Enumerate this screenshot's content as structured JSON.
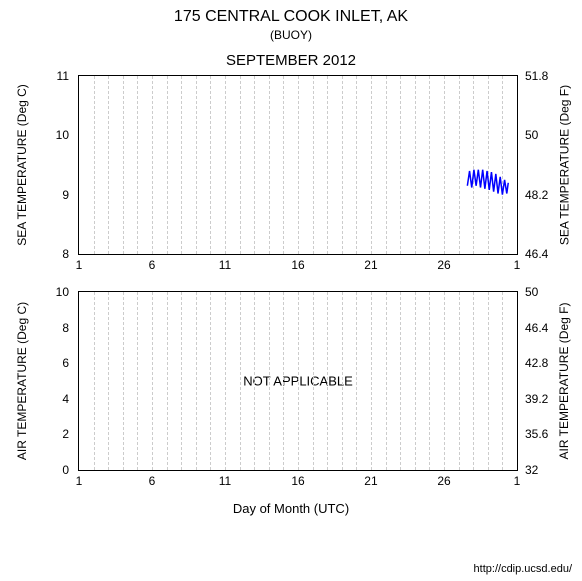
{
  "header": {
    "title": "175 CENTRAL COOK INLET, AK",
    "subtitle": "(BUOY)",
    "month": "SEPTEMBER 2012"
  },
  "xlabel": "Day of Month (UTC)",
  "credit": "http://cdip.ucsd.edu/",
  "x_axis": {
    "min": 1,
    "max": 31,
    "ticks": [
      1,
      6,
      11,
      16,
      21,
      26,
      31
    ],
    "tick_labels": [
      "1",
      "6",
      "11",
      "16",
      "21",
      "26",
      "1"
    ],
    "grid_positions": [
      2,
      3,
      4,
      5,
      6,
      7,
      8,
      9,
      10,
      11,
      12,
      13,
      14,
      15,
      16,
      17,
      18,
      19,
      20,
      21,
      22,
      23,
      24,
      25,
      26,
      27,
      28,
      29,
      30
    ]
  },
  "top_chart": {
    "ylabel_left": "SEA TEMPERATURE (Deg C)",
    "ylabel_right": "SEA TEMPERATURE (Deg F)",
    "yl_min": 8,
    "yl_max": 11,
    "yl_ticks": [
      8,
      9,
      10,
      11
    ],
    "yr_ticks": [
      {
        "label": "46.4",
        "c": 8
      },
      {
        "label": "48.2",
        "c": 9
      },
      {
        "label": "50",
        "c": 10
      },
      {
        "label": "51.8",
        "c": 11
      }
    ],
    "series": {
      "color": "#0000ff",
      "width": 1.5,
      "points": [
        {
          "x": 27.6,
          "y": 9.15
        },
        {
          "x": 27.75,
          "y": 9.4
        },
        {
          "x": 27.9,
          "y": 9.12
        },
        {
          "x": 28.05,
          "y": 9.42
        },
        {
          "x": 28.2,
          "y": 9.15
        },
        {
          "x": 28.35,
          "y": 9.42
        },
        {
          "x": 28.5,
          "y": 9.12
        },
        {
          "x": 28.65,
          "y": 9.42
        },
        {
          "x": 28.8,
          "y": 9.1
        },
        {
          "x": 28.95,
          "y": 9.4
        },
        {
          "x": 29.1,
          "y": 9.08
        },
        {
          "x": 29.25,
          "y": 9.38
        },
        {
          "x": 29.4,
          "y": 9.05
        },
        {
          "x": 29.55,
          "y": 9.35
        },
        {
          "x": 29.7,
          "y": 9.02
        },
        {
          "x": 29.85,
          "y": 9.3
        },
        {
          "x": 30.0,
          "y": 9.0
        },
        {
          "x": 30.15,
          "y": 9.25
        },
        {
          "x": 30.3,
          "y": 9.02
        },
        {
          "x": 30.4,
          "y": 9.2
        }
      ]
    }
  },
  "bottom_chart": {
    "ylabel_left": "AIR TEMPERATURE (Deg C)",
    "ylabel_right": "AIR TEMPERATURE (Deg F)",
    "yl_min": 0,
    "yl_max": 10,
    "yl_ticks": [
      0,
      2,
      4,
      6,
      8,
      10
    ],
    "yr_ticks": [
      {
        "label": "32",
        "c": 0
      },
      {
        "label": "35.6",
        "c": 2
      },
      {
        "label": "39.2",
        "c": 4
      },
      {
        "label": "42.8",
        "c": 6
      },
      {
        "label": "46.4",
        "c": 8
      },
      {
        "label": "50",
        "c": 10
      }
    ],
    "overlay": "NOT APPLICABLE"
  },
  "style": {
    "grid_color": "#cccccc",
    "axis_color": "#000000",
    "bg": "#ffffff",
    "font_tick": 12
  }
}
